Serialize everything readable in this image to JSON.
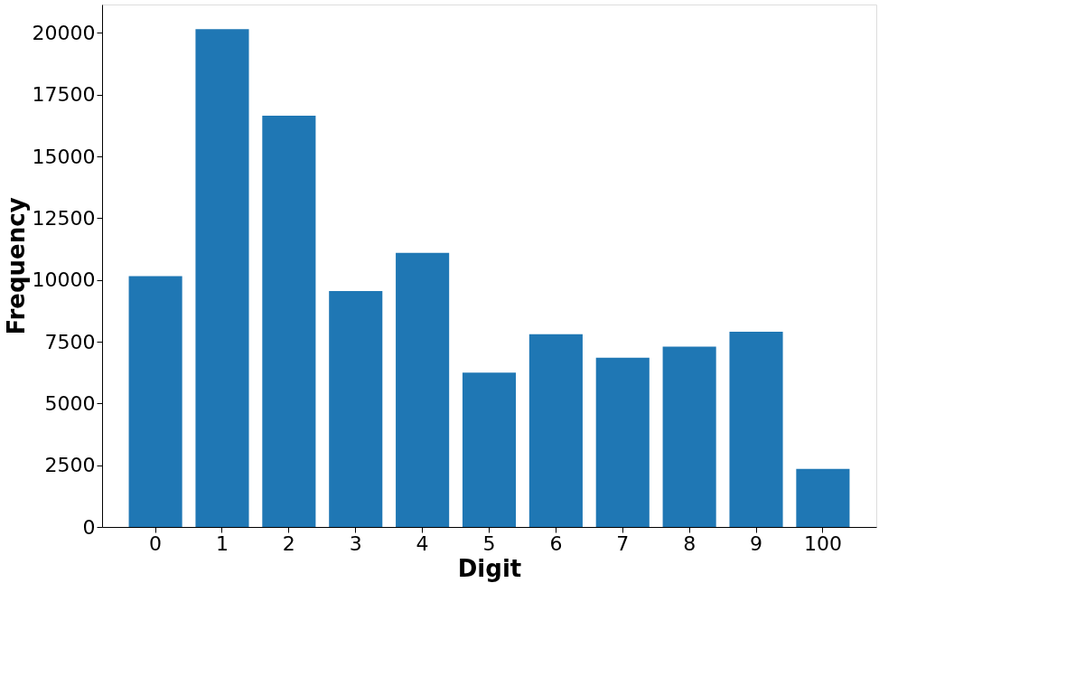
{
  "chart_data": {
    "type": "bar",
    "xlabel": "Digit",
    "ylabel": "Frequency",
    "categories": [
      "0",
      "1",
      "2",
      "3",
      "4",
      "5",
      "6",
      "7",
      "8",
      "9",
      "100"
    ],
    "values": [
      10150,
      20150,
      16650,
      9550,
      11100,
      6250,
      7800,
      6850,
      7300,
      7900,
      2350
    ],
    "color": "#1f77b4",
    "ylim": [
      0,
      21150
    ],
    "yticks": [
      0,
      2500,
      5000,
      7500,
      10000,
      12500,
      15000,
      17500,
      20000
    ],
    "grid": false
  }
}
